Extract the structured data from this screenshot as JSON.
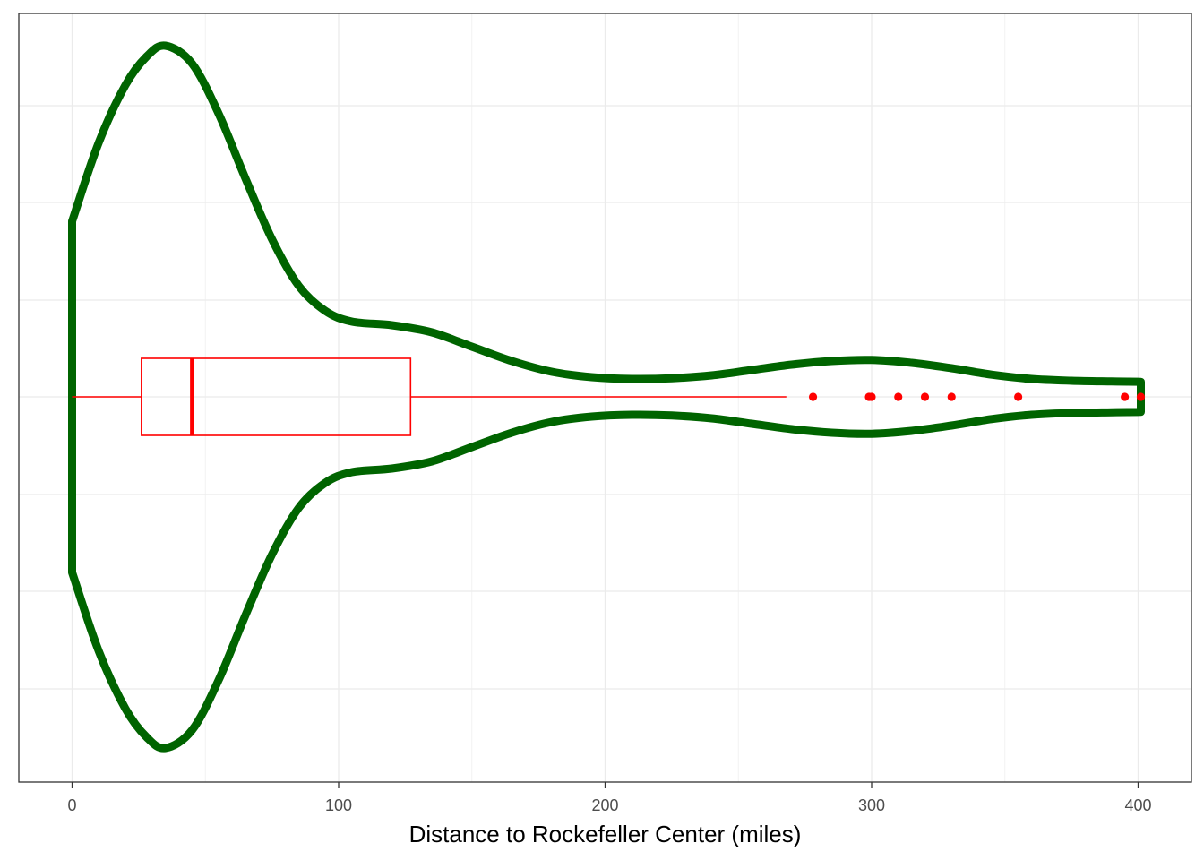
{
  "chart_data": {
    "type": "violin",
    "orientation": "horizontal",
    "xlabel": "Distance to Rockefeller Center (miles)",
    "ylabel": "",
    "title": "",
    "xlim": [
      -20,
      420
    ],
    "x_ticks": [
      0,
      100,
      200,
      300,
      400
    ],
    "x_tick_labels": [
      "0",
      "100",
      "200",
      "300",
      "400"
    ],
    "x_minor_ticks": [
      50,
      150,
      250,
      350
    ],
    "grid": true,
    "violin": {
      "color": "#006400",
      "density_profile": [
        {
          "x": 0,
          "half_width": 0.49
        },
        {
          "x": 10,
          "half_width": 0.71
        },
        {
          "x": 20,
          "half_width": 0.87
        },
        {
          "x": 28,
          "half_width": 0.95
        },
        {
          "x": 35,
          "half_width": 0.98
        },
        {
          "x": 45,
          "half_width": 0.93
        },
        {
          "x": 55,
          "half_width": 0.79
        },
        {
          "x": 65,
          "half_width": 0.61
        },
        {
          "x": 75,
          "half_width": 0.44
        },
        {
          "x": 85,
          "half_width": 0.31
        },
        {
          "x": 95,
          "half_width": 0.24
        },
        {
          "x": 105,
          "half_width": 0.21
        },
        {
          "x": 120,
          "half_width": 0.2
        },
        {
          "x": 135,
          "half_width": 0.18
        },
        {
          "x": 150,
          "half_width": 0.14
        },
        {
          "x": 165,
          "half_width": 0.1
        },
        {
          "x": 180,
          "half_width": 0.07
        },
        {
          "x": 195,
          "half_width": 0.055
        },
        {
          "x": 210,
          "half_width": 0.05
        },
        {
          "x": 225,
          "half_width": 0.052
        },
        {
          "x": 240,
          "half_width": 0.06
        },
        {
          "x": 255,
          "half_width": 0.075
        },
        {
          "x": 270,
          "half_width": 0.09
        },
        {
          "x": 285,
          "half_width": 0.1
        },
        {
          "x": 300,
          "half_width": 0.103
        },
        {
          "x": 315,
          "half_width": 0.095
        },
        {
          "x": 330,
          "half_width": 0.08
        },
        {
          "x": 345,
          "half_width": 0.062
        },
        {
          "x": 360,
          "half_width": 0.05
        },
        {
          "x": 375,
          "half_width": 0.045
        },
        {
          "x": 390,
          "half_width": 0.043
        },
        {
          "x": 401,
          "half_width": 0.042
        }
      ]
    },
    "boxplot": {
      "color": "#ff0000",
      "min": 0,
      "q1": 26,
      "median": 45,
      "q3": 127,
      "max": 268,
      "outliers": [
        278,
        299,
        300,
        310,
        320,
        330,
        355,
        395,
        401
      ]
    }
  }
}
